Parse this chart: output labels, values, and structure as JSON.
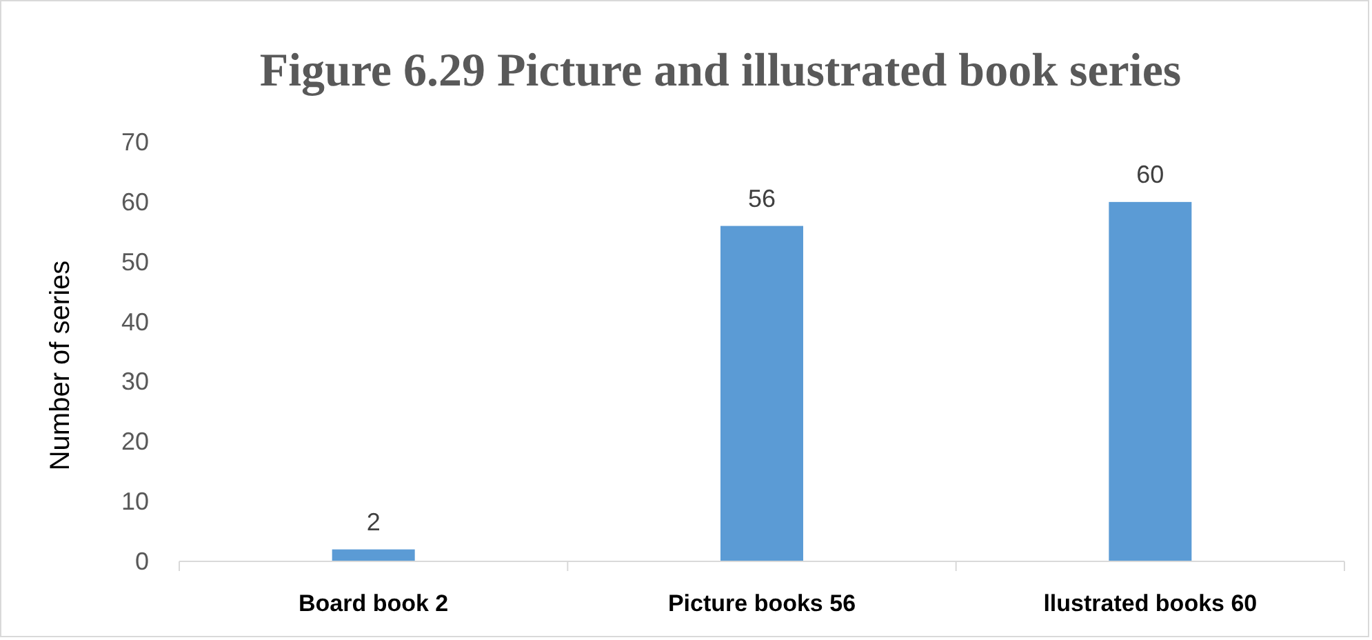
{
  "chart_data": {
    "type": "bar",
    "title": "Figure 6.29 Picture and illustrated book series",
    "ylabel": "Number of series",
    "categories": [
      "Board book 2",
      "Picture books 56",
      "llustrated books 60"
    ],
    "values": [
      2,
      56,
      60
    ],
    "color": "#5b9bd5",
    "ylim": [
      0,
      70
    ],
    "yticks": [
      0,
      10,
      20,
      30,
      40,
      50,
      60,
      70
    ],
    "grid": false,
    "data_labels": true
  }
}
